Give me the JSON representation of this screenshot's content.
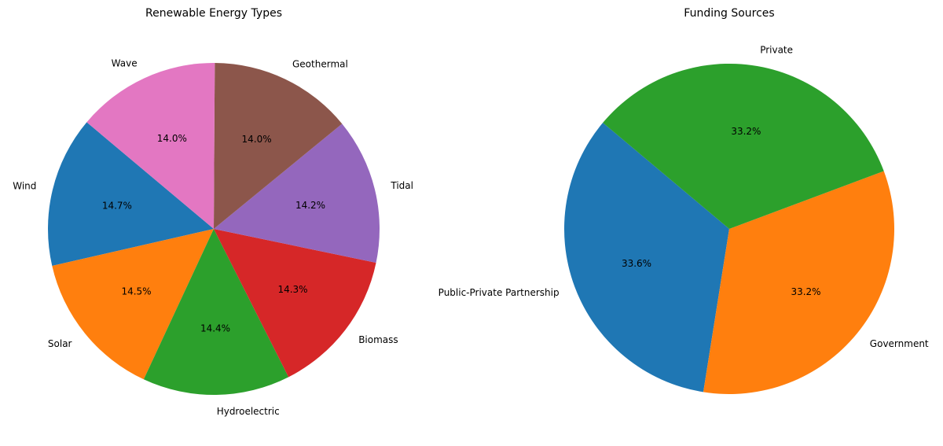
{
  "chart_data": [
    {
      "type": "pie",
      "title": "Renewable Energy Types",
      "categories": [
        "Wind",
        "Solar",
        "Hydroelectric",
        "Biomass",
        "Tidal",
        "Geothermal",
        "Wave"
      ],
      "values": [
        14.7,
        14.5,
        14.4,
        14.3,
        14.2,
        14.0,
        14.0
      ],
      "value_labels": [
        "14.7%",
        "14.5%",
        "14.4%",
        "14.3%",
        "14.2%",
        "14.0%",
        "14.0%"
      ],
      "colors": [
        "#1f77b4",
        "#ff7f0e",
        "#2ca02c",
        "#d62728",
        "#9467bd",
        "#8c564b",
        "#e377c2"
      ],
      "startangle": 140,
      "direction": "counterclockwise",
      "legend": "none",
      "center": [
        272,
        291
      ],
      "radius": 211
    },
    {
      "type": "pie",
      "title": "Funding Sources",
      "categories": [
        "Public-Private Partnership",
        "Government",
        "Private"
      ],
      "values": [
        33.6,
        33.2,
        33.2
      ],
      "value_labels": [
        "33.6%",
        "33.2%",
        "33.2%"
      ],
      "colors": [
        "#1f77b4",
        "#ff7f0e",
        "#2ca02c"
      ],
      "startangle": 140,
      "direction": "counterclockwise",
      "legend": "none",
      "center": [
        928,
        291
      ],
      "radius": 210
    }
  ]
}
